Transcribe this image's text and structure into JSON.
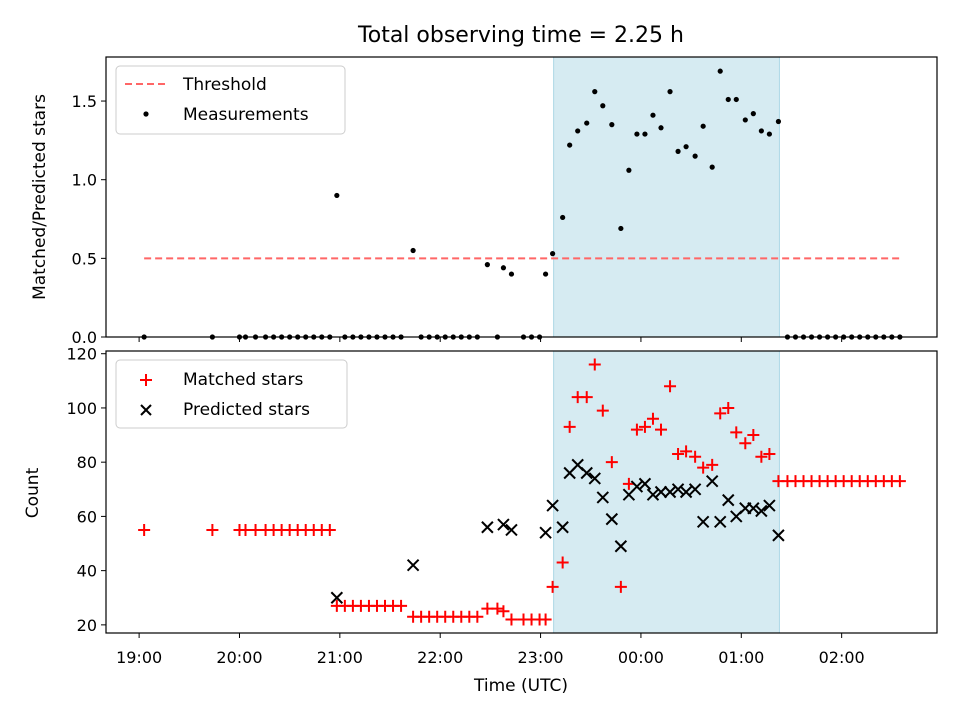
{
  "chart_data": {
    "title": "Total observing time = 2.25 h",
    "xlabel": "Time (UTC)",
    "xtick_labels": [
      "19:00",
      "20:00",
      "21:00",
      "22:00",
      "23:00",
      "00:00",
      "01:00",
      "02:00"
    ],
    "x_unit": "hours since 19:00 UTC",
    "xlim": [
      -0.33,
      7.95
    ],
    "highlight_span": [
      4.13,
      6.38
    ],
    "highlight_color": "#add8e6",
    "panels": [
      {
        "type": "scatter",
        "ylabel": "Matched/Predicted stars",
        "ylim": [
          0,
          1.78
        ],
        "yticks": [
          0.0,
          0.5,
          1.0,
          1.5
        ],
        "ytick_labels": [
          "0.0",
          "0.5",
          "1.0",
          "1.5"
        ],
        "legend_position": "top-left",
        "threshold": {
          "name": "Threshold",
          "value": 0.5,
          "x_range": [
            0.05,
            7.58
          ],
          "color": "#ff6666",
          "style": "dashed"
        },
        "series": [
          {
            "name": "Measurements",
            "marker": "dot",
            "color": "#000000",
            "points": [
              [
                0.05,
                0
              ],
              [
                0.73,
                0
              ],
              [
                1.0,
                0
              ],
              [
                1.06,
                0
              ],
              [
                1.16,
                0
              ],
              [
                1.26,
                0
              ],
              [
                1.34,
                0
              ],
              [
                1.42,
                0
              ],
              [
                1.5,
                0
              ],
              [
                1.58,
                0
              ],
              [
                1.66,
                0
              ],
              [
                1.74,
                0
              ],
              [
                1.82,
                0
              ],
              [
                1.9,
                0
              ],
              [
                1.97,
                0.9
              ],
              [
                2.05,
                0
              ],
              [
                2.13,
                0
              ],
              [
                2.21,
                0
              ],
              [
                2.29,
                0
              ],
              [
                2.37,
                0
              ],
              [
                2.45,
                0
              ],
              [
                2.53,
                0
              ],
              [
                2.61,
                0
              ],
              [
                2.73,
                0.55
              ],
              [
                2.81,
                0
              ],
              [
                2.89,
                0
              ],
              [
                2.97,
                0
              ],
              [
                3.05,
                0
              ],
              [
                3.13,
                0
              ],
              [
                3.21,
                0
              ],
              [
                3.29,
                0
              ],
              [
                3.37,
                0
              ],
              [
                3.47,
                0.46
              ],
              [
                3.57,
                0
              ],
              [
                3.63,
                0.44
              ],
              [
                3.71,
                0.4
              ],
              [
                3.83,
                0
              ],
              [
                3.91,
                0
              ],
              [
                3.99,
                0
              ],
              [
                4.05,
                0.4
              ],
              [
                4.12,
                0.53
              ],
              [
                4.22,
                0.76
              ],
              [
                4.29,
                1.22
              ],
              [
                4.37,
                1.31
              ],
              [
                4.46,
                1.36
              ],
              [
                4.54,
                1.56
              ],
              [
                4.62,
                1.47
              ],
              [
                4.71,
                1.35
              ],
              [
                4.8,
                0.69
              ],
              [
                4.88,
                1.06
              ],
              [
                4.96,
                1.29
              ],
              [
                5.04,
                1.29
              ],
              [
                5.12,
                1.41
              ],
              [
                5.2,
                1.33
              ],
              [
                5.29,
                1.56
              ],
              [
                5.37,
                1.18
              ],
              [
                5.45,
                1.21
              ],
              [
                5.54,
                1.15
              ],
              [
                5.62,
                1.34
              ],
              [
                5.71,
                1.08
              ],
              [
                5.79,
                1.69
              ],
              [
                5.87,
                1.51
              ],
              [
                5.95,
                1.51
              ],
              [
                6.04,
                1.38
              ],
              [
                6.12,
                1.42
              ],
              [
                6.2,
                1.31
              ],
              [
                6.28,
                1.29
              ],
              [
                6.37,
                1.37
              ],
              [
                6.46,
                0
              ],
              [
                6.54,
                0
              ],
              [
                6.62,
                0
              ],
              [
                6.7,
                0
              ],
              [
                6.78,
                0
              ],
              [
                6.86,
                0
              ],
              [
                6.94,
                0
              ],
              [
                7.02,
                0
              ],
              [
                7.1,
                0
              ],
              [
                7.18,
                0
              ],
              [
                7.26,
                0
              ],
              [
                7.34,
                0
              ],
              [
                7.42,
                0
              ],
              [
                7.5,
                0
              ],
              [
                7.58,
                0
              ]
            ]
          }
        ]
      },
      {
        "type": "scatter",
        "ylabel": "Count",
        "ylim": [
          17,
          121
        ],
        "yticks": [
          20,
          40,
          60,
          80,
          100,
          120
        ],
        "ytick_labels": [
          "20",
          "40",
          "60",
          "80",
          "100",
          "120"
        ],
        "legend_position": "top-left",
        "series": [
          {
            "name": "Matched stars",
            "marker": "plus",
            "color": "#ff0000",
            "points": [
              [
                0.05,
                55
              ],
              [
                0.73,
                55
              ],
              [
                1.0,
                55
              ],
              [
                1.06,
                55
              ],
              [
                1.16,
                55
              ],
              [
                1.26,
                55
              ],
              [
                1.34,
                55
              ],
              [
                1.42,
                55
              ],
              [
                1.5,
                55
              ],
              [
                1.58,
                55
              ],
              [
                1.66,
                55
              ],
              [
                1.74,
                55
              ],
              [
                1.82,
                55
              ],
              [
                1.9,
                55
              ],
              [
                1.97,
                27
              ],
              [
                2.05,
                27
              ],
              [
                2.13,
                27
              ],
              [
                2.21,
                27
              ],
              [
                2.29,
                27
              ],
              [
                2.37,
                27
              ],
              [
                2.45,
                27
              ],
              [
                2.53,
                27
              ],
              [
                2.61,
                27
              ],
              [
                2.73,
                23
              ],
              [
                2.81,
                23
              ],
              [
                2.89,
                23
              ],
              [
                2.97,
                23
              ],
              [
                3.05,
                23
              ],
              [
                3.13,
                23
              ],
              [
                3.21,
                23
              ],
              [
                3.29,
                23
              ],
              [
                3.37,
                23
              ],
              [
                3.47,
                26
              ],
              [
                3.57,
                26
              ],
              [
                3.63,
                25
              ],
              [
                3.71,
                22
              ],
              [
                3.83,
                22
              ],
              [
                3.91,
                22
              ],
              [
                3.99,
                22
              ],
              [
                4.05,
                22
              ],
              [
                4.12,
                34
              ],
              [
                4.22,
                43
              ],
              [
                4.29,
                93
              ],
              [
                4.37,
                104
              ],
              [
                4.46,
                104
              ],
              [
                4.54,
                116
              ],
              [
                4.62,
                99
              ],
              [
                4.71,
                80
              ],
              [
                4.8,
                34
              ],
              [
                4.88,
                72
              ],
              [
                4.96,
                92
              ],
              [
                5.04,
                93
              ],
              [
                5.12,
                96
              ],
              [
                5.2,
                92
              ],
              [
                5.29,
                108
              ],
              [
                5.37,
                83
              ],
              [
                5.45,
                84
              ],
              [
                5.54,
                82
              ],
              [
                5.62,
                78
              ],
              [
                5.71,
                79
              ],
              [
                5.79,
                98
              ],
              [
                5.87,
                100
              ],
              [
                5.95,
                91
              ],
              [
                6.04,
                87
              ],
              [
                6.12,
                90
              ],
              [
                6.2,
                82
              ],
              [
                6.28,
                83
              ],
              [
                6.37,
                73
              ],
              [
                6.46,
                73
              ],
              [
                6.54,
                73
              ],
              [
                6.62,
                73
              ],
              [
                6.7,
                73
              ],
              [
                6.78,
                73
              ],
              [
                6.86,
                73
              ],
              [
                6.94,
                73
              ],
              [
                7.02,
                73
              ],
              [
                7.1,
                73
              ],
              [
                7.18,
                73
              ],
              [
                7.26,
                73
              ],
              [
                7.34,
                73
              ],
              [
                7.42,
                73
              ],
              [
                7.5,
                73
              ],
              [
                7.58,
                73
              ]
            ]
          },
          {
            "name": "Predicted stars",
            "marker": "x",
            "color": "#000000",
            "points": [
              [
                1.97,
                30
              ],
              [
                2.73,
                42
              ],
              [
                3.47,
                56
              ],
              [
                3.63,
                57
              ],
              [
                3.71,
                55
              ],
              [
                4.05,
                54
              ],
              [
                4.12,
                64
              ],
              [
                4.22,
                56
              ],
              [
                4.29,
                76
              ],
              [
                4.37,
                79
              ],
              [
                4.46,
                76
              ],
              [
                4.54,
                74
              ],
              [
                4.62,
                67
              ],
              [
                4.71,
                59
              ],
              [
                4.8,
                49
              ],
              [
                4.88,
                68
              ],
              [
                4.96,
                71
              ],
              [
                5.04,
                72
              ],
              [
                5.12,
                68
              ],
              [
                5.2,
                69
              ],
              [
                5.29,
                69
              ],
              [
                5.37,
                70
              ],
              [
                5.45,
                69
              ],
              [
                5.54,
                70
              ],
              [
                5.62,
                58
              ],
              [
                5.71,
                73
              ],
              [
                5.79,
                58
              ],
              [
                5.87,
                66
              ],
              [
                5.95,
                60
              ],
              [
                6.04,
                63
              ],
              [
                6.12,
                63
              ],
              [
                6.2,
                62
              ],
              [
                6.28,
                64
              ],
              [
                6.37,
                53
              ]
            ]
          }
        ]
      }
    ]
  }
}
